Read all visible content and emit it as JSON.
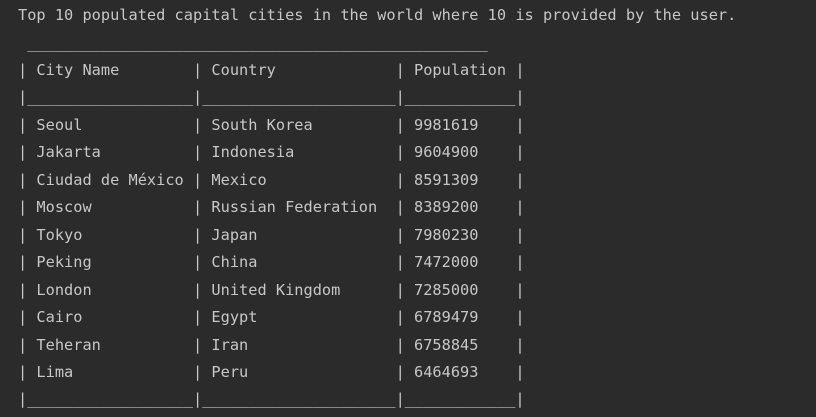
{
  "console": {
    "message": "Top 10 populated capital cities in the world where 10 is provided by the user.",
    "table": {
      "top_border": " __________________________________________________",
      "header_line": "| City Name        | Country             | Population |",
      "header_separator": "|__________________|_____________________|____________|",
      "rows": [
        "| Seoul            | South Korea         | 9981619    |",
        "| Jakarta          | Indonesia           | 9604900    |",
        "| Ciudad de México | Mexico              | 8591309    |",
        "| Moscow           | Russian Federation  | 8389200    |",
        "| Tokyo            | Japan               | 7980230    |",
        "| Peking           | China               | 7472000    |",
        "| London           | United Kingdom      | 7285000    |",
        "| Cairo            | Egypt               | 6789479    |",
        "| Teheran          | Iran                | 6758845    |",
        "| Lima             | Peru                | 6464693    |"
      ],
      "bottom_border": "|__________________|_____________________|____________|"
    }
  }
}
